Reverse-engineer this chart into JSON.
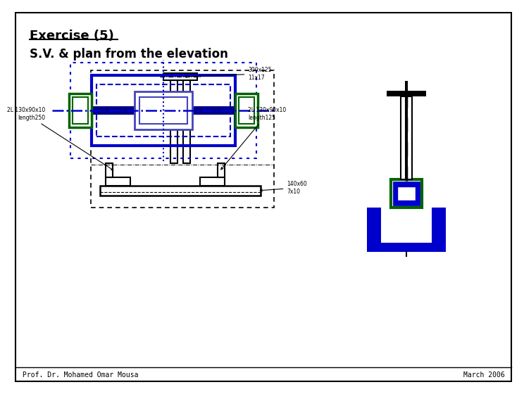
{
  "title": "Exercise (5)",
  "subtitle": "S.V. & plan from the elevation",
  "footer_left": "Prof. Dr. Mohamed Omar Mousa",
  "footer_right": "March 2006",
  "blue": "#0000cc",
  "dark_blue": "#00008b",
  "medium_blue": "#4444bb",
  "green": "#006400",
  "black": "#000000",
  "white": "#ffffff",
  "ann1": "300x125\n11x17",
  "ann2": "2L 130x90x10\nlength250",
  "ann3": "2L 130x90x10\nlength125",
  "ann4": "140x60\n7x10"
}
